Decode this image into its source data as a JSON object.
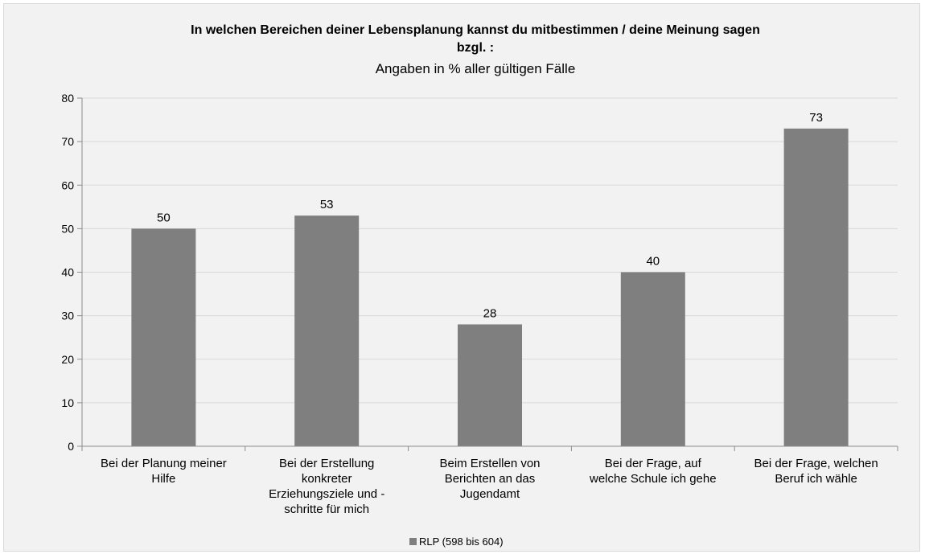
{
  "chart_data": {
    "type": "bar",
    "title": "In welchen Bereichen deiner Lebensplanung kannst du mitbestimmen / deine Meinung sagen bzgl. :",
    "subtitle": "Angaben in % aller gültigen Fälle",
    "categories": [
      "Bei der Planung meiner Hilfe",
      "Bei der Erstellung konkreter Erziehungsziele und -schritte für mich",
      "Beim Erstellen von Berichten an das Jugendamt",
      "Bei der Frage, auf welche Schule ich gehe",
      "Bei der Frage, welchen Beruf ich wähle"
    ],
    "category_label_lines": [
      [
        "Bei der Planung meiner",
        "Hilfe"
      ],
      [
        "Bei der Erstellung",
        "konkreter",
        "Erziehungsziele und -",
        "schritte für mich"
      ],
      [
        "Beim Erstellen von",
        "Berichten an das",
        "Jugendamt"
      ],
      [
        "Bei der Frage, auf",
        "welche Schule ich gehe"
      ],
      [
        "Bei der Frage, welchen",
        "Beruf ich wähle"
      ]
    ],
    "series": [
      {
        "name": "RLP (598 bis 604)",
        "values": [
          50,
          53,
          28,
          40,
          73
        ],
        "color": "#7f7f7f"
      }
    ],
    "ylim": [
      0,
      80
    ],
    "yticks": [
      0,
      10,
      20,
      30,
      40,
      50,
      60,
      70,
      80
    ],
    "xlabel": "",
    "ylabel": "",
    "grid": true,
    "legend": "bottom-center",
    "data_labels": true
  }
}
